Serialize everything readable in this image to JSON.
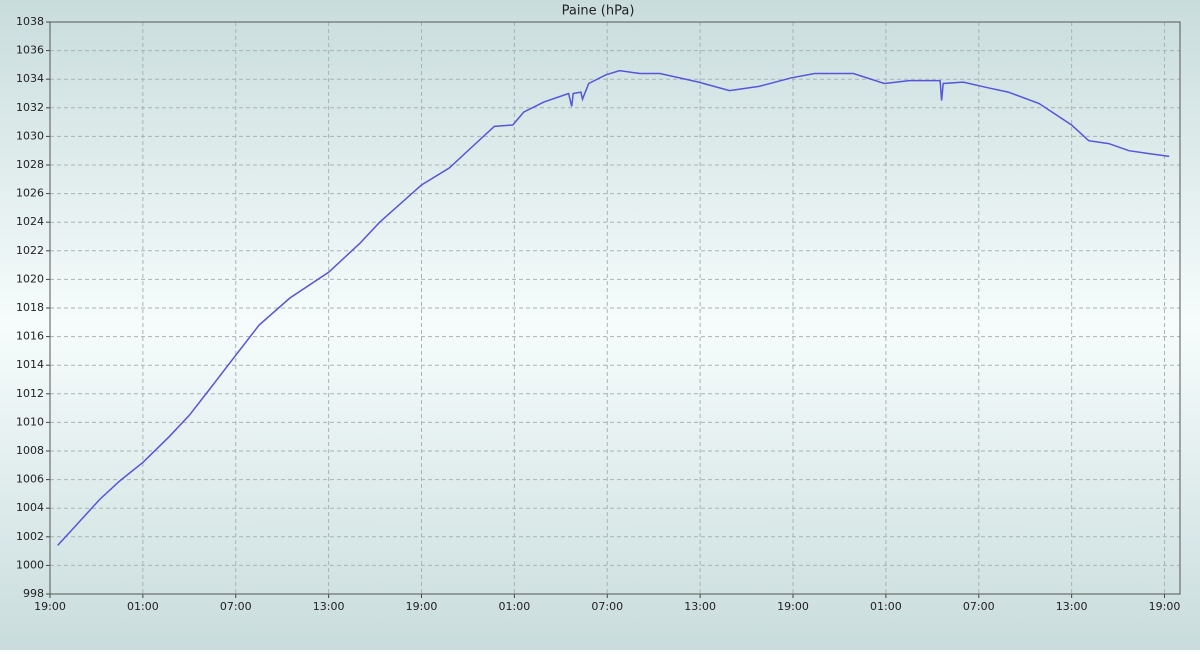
{
  "chart_data": {
    "type": "line",
    "title": "Paine (hPa)",
    "x": [
      0.5,
      1.6,
      3.2,
      4.5,
      6,
      7.7,
      9,
      10.3,
      12,
      13.5,
      15.5,
      18,
      20,
      21.3,
      24,
      25.8,
      27.4,
      28.7,
      29.9,
      30.6,
      31.9,
      33.5,
      33.7,
      33.8,
      34.3,
      34.4,
      34.8,
      35.9,
      36.8,
      38.1,
      39.4,
      41.9,
      43.9,
      45.8,
      47.9,
      49.4,
      51.9,
      53.9,
      55.5,
      57.5,
      57.6,
      57.7,
      59,
      60.6,
      61.9,
      63.9,
      66,
      67.1,
      68.4,
      69.7,
      71,
      72.3
    ],
    "series": [
      {
        "name": "Paine",
        "color": "#5555dd",
        "values": [
          1001.4,
          1002.7,
          1004.6,
          1005.9,
          1007.2,
          1009,
          1010.5,
          1012.3,
          1014.7,
          1016.8,
          1018.7,
          1020.5,
          1022.5,
          1024,
          1026.6,
          1027.8,
          1029.4,
          1030.7,
          1030.8,
          1031.7,
          1032.4,
          1033,
          1032.1,
          1033,
          1033.1,
          1032.6,
          1033.7,
          1034.3,
          1034.6,
          1034.4,
          1034.4,
          1033.8,
          1033.2,
          1033.5,
          1034.1,
          1034.4,
          1034.4,
          1033.7,
          1033.9,
          1033.9,
          1032.5,
          1033.7,
          1033.8,
          1033.4,
          1033.1,
          1032.3,
          1030.8,
          1029.7,
          1029.5,
          1029,
          1028.8,
          1028.6
        ]
      }
    ],
    "xlim": [
      0,
      73
    ],
    "xticks": [
      {
        "value": 0,
        "label": "19:00"
      },
      {
        "value": 6,
        "label": "01:00"
      },
      {
        "value": 12,
        "label": "07:00"
      },
      {
        "value": 18,
        "label": "13:00"
      },
      {
        "value": 24,
        "label": "19:00"
      },
      {
        "value": 30,
        "label": "01:00"
      },
      {
        "value": 36,
        "label": "07:00"
      },
      {
        "value": 42,
        "label": "13:00"
      },
      {
        "value": 48,
        "label": "19:00"
      },
      {
        "value": 54,
        "label": "01:00"
      },
      {
        "value": 60,
        "label": "07:00"
      },
      {
        "value": 66,
        "label": "13:00"
      },
      {
        "value": 72,
        "label": "19:00"
      }
    ],
    "ylim": [
      998,
      1038
    ],
    "yticks": [
      998,
      1000,
      1002,
      1004,
      1006,
      1008,
      1010,
      1012,
      1014,
      1016,
      1018,
      1020,
      1022,
      1024,
      1026,
      1028,
      1030,
      1032,
      1034,
      1036,
      1038
    ],
    "grid": true
  }
}
